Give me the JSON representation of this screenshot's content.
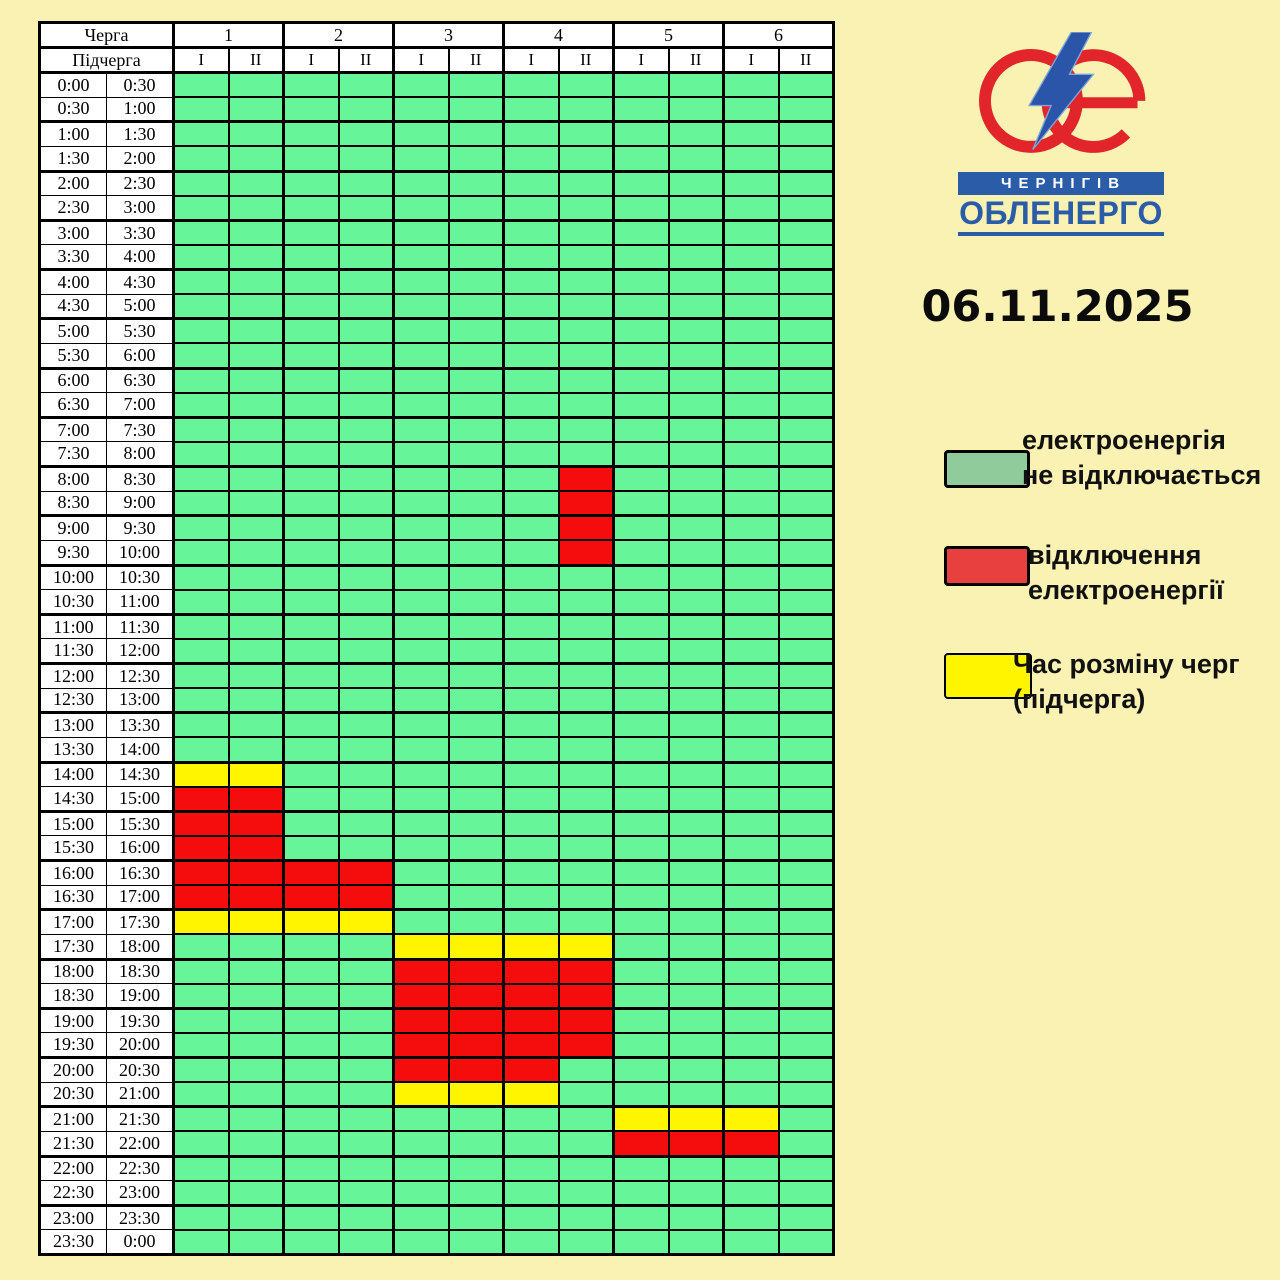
{
  "date": "06.11.2025",
  "logo": {
    "city": "ЧЕРНІГІВ",
    "company": "ОБЛЕНЕРГО",
    "blue": "#2B5CA8",
    "white": "#FFFFFF",
    "ring_color": "#E2252B",
    "bolt_color": "#2B55A8",
    "bolt_edge": "#7EA6D8"
  },
  "legend": [
    {
      "name": "green",
      "color": "#8FCB9B",
      "label": "електроенергія\nне відключається"
    },
    {
      "name": "red",
      "color": "#E8403F",
      "label": "відключення\nелектроенергії"
    },
    {
      "name": "yellow",
      "color": "#FFF500",
      "label": "Час розміну черг\n(підчерга)"
    }
  ],
  "table": {
    "corner_row1": "Черга",
    "corner_row2": "Підчерга",
    "queue_numbers": [
      "1",
      "2",
      "3",
      "4",
      "5",
      "6"
    ],
    "colors": {
      "available": "#66F599",
      "outage": "#F50C0C",
      "transition": "#FFF500"
    },
    "time_rows": [
      [
        "0:00",
        "0:30"
      ],
      [
        "0:30",
        "1:00"
      ],
      [
        "1:00",
        "1:30"
      ],
      [
        "1:30",
        "2:00"
      ],
      [
        "2:00",
        "2:30"
      ],
      [
        "2:30",
        "3:00"
      ],
      [
        "3:00",
        "3:30"
      ],
      [
        "3:30",
        "4:00"
      ],
      [
        "4:00",
        "4:30"
      ],
      [
        "4:30",
        "5:00"
      ],
      [
        "5:00",
        "5:30"
      ],
      [
        "5:30",
        "6:00"
      ],
      [
        "6:00",
        "6:30"
      ],
      [
        "6:30",
        "7:00"
      ],
      [
        "7:00",
        "7:30"
      ],
      [
        "7:30",
        "8:00"
      ],
      [
        "8:00",
        "8:30"
      ],
      [
        "8:30",
        "9:00"
      ],
      [
        "9:00",
        "9:30"
      ],
      [
        "9:30",
        "10:00"
      ],
      [
        "10:00",
        "10:30"
      ],
      [
        "10:30",
        "11:00"
      ],
      [
        "11:00",
        "11:30"
      ],
      [
        "11:30",
        "12:00"
      ],
      [
        "12:00",
        "12:30"
      ],
      [
        "12:30",
        "13:00"
      ],
      [
        "13:00",
        "13:30"
      ],
      [
        "13:30",
        "14:00"
      ],
      [
        "14:00",
        "14:30"
      ],
      [
        "14:30",
        "15:00"
      ],
      [
        "15:00",
        "15:30"
      ],
      [
        "15:30",
        "16:00"
      ],
      [
        "16:00",
        "16:30"
      ],
      [
        "16:30",
        "17:00"
      ],
      [
        "17:00",
        "17:30"
      ],
      [
        "17:30",
        "18:00"
      ],
      [
        "18:00",
        "18:30"
      ],
      [
        "18:30",
        "19:00"
      ],
      [
        "19:00",
        "19:30"
      ],
      [
        "19:30",
        "20:00"
      ],
      [
        "20:00",
        "20:30"
      ],
      [
        "20:30",
        "21:00"
      ],
      [
        "21:00",
        "21:30"
      ],
      [
        "21:30",
        "22:00"
      ],
      [
        "22:00",
        "22:30"
      ],
      [
        "22:30",
        "23:00"
      ],
      [
        "23:00",
        "23:30"
      ],
      [
        "23:30",
        "0:00"
      ]
    ],
    "columns": [
      {
        "queue": "1",
        "subqueue": "I",
        "red": [
          "14:30-17:00"
        ],
        "yellow": [
          "14:00-14:30",
          "17:00-17:30"
        ]
      },
      {
        "queue": "1",
        "subqueue": "II",
        "red": [
          "14:30-17:00"
        ],
        "yellow": [
          "14:00-14:30",
          "17:00-17:30"
        ]
      },
      {
        "queue": "2",
        "subqueue": "I",
        "red": [
          "16:00-17:00"
        ],
        "yellow": [
          "17:00-17:30"
        ]
      },
      {
        "queue": "2",
        "subqueue": "II",
        "red": [
          "16:00-17:00"
        ],
        "yellow": [
          "17:00-17:30"
        ]
      },
      {
        "queue": "3",
        "subqueue": "I",
        "red": [
          "18:00-20:30"
        ],
        "yellow": [
          "17:30-18:00",
          "20:30-21:00"
        ]
      },
      {
        "queue": "3",
        "subqueue": "II",
        "red": [
          "18:00-20:30"
        ],
        "yellow": [
          "17:30-18:00",
          "20:30-21:00"
        ]
      },
      {
        "queue": "4",
        "subqueue": "I",
        "red": [
          "18:00-20:30"
        ],
        "yellow": [
          "17:30-18:00",
          "20:30-21:00"
        ]
      },
      {
        "queue": "4",
        "subqueue": "II",
        "red": [
          "8:00-10:00",
          "18:00-20:00"
        ],
        "yellow": [
          "17:30-18:00"
        ]
      },
      {
        "queue": "5",
        "subqueue": "I",
        "red": [
          "21:30-22:00"
        ],
        "yellow": [
          "21:00-21:30"
        ]
      },
      {
        "queue": "5",
        "subqueue": "II",
        "red": [
          "21:30-22:00"
        ],
        "yellow": [
          "21:00-21:30"
        ]
      },
      {
        "queue": "6",
        "subqueue": "I",
        "red": [
          "21:30-22:00"
        ],
        "yellow": [
          "21:00-21:30"
        ]
      },
      {
        "queue": "6",
        "subqueue": "II",
        "red": [],
        "yellow": []
      }
    ]
  },
  "chart_data": {
    "type": "table",
    "title": "06.11.2025",
    "row_axis": "time, 30-minute slots from 0:00 to 0:00 (48 rows)",
    "column_axis": "Черга 1-6, Підчерга I/II",
    "columns": [
      "1-I",
      "1-II",
      "2-I",
      "2-II",
      "3-I",
      "3-II",
      "4-I",
      "4-II",
      "5-I",
      "5-II",
      "6-I",
      "6-II"
    ],
    "outage_intervals": {
      "1-I": [
        "14:30-17:00"
      ],
      "1-II": [
        "14:30-17:00"
      ],
      "2-I": [
        "16:00-17:00"
      ],
      "2-II": [
        "16:00-17:00"
      ],
      "3-I": [
        "18:00-20:30"
      ],
      "3-II": [
        "18:00-20:30"
      ],
      "4-I": [
        "18:00-20:30"
      ],
      "4-II": [
        "8:00-10:00",
        "18:00-20:00"
      ],
      "5-I": [
        "21:30-22:00"
      ],
      "5-II": [
        "21:30-22:00"
      ],
      "6-I": [
        "21:30-22:00"
      ],
      "6-II": []
    },
    "transition_intervals": {
      "1-I": [
        "14:00-14:30",
        "17:00-17:30"
      ],
      "1-II": [
        "14:00-14:30",
        "17:00-17:30"
      ],
      "2-I": [
        "17:00-17:30"
      ],
      "2-II": [
        "17:00-17:30"
      ],
      "3-I": [
        "17:30-18:00",
        "20:30-21:00"
      ],
      "3-II": [
        "17:30-18:00",
        "20:30-21:00"
      ],
      "4-I": [
        "17:30-18:00",
        "20:30-21:00"
      ],
      "4-II": [
        "17:30-18:00"
      ],
      "5-I": [
        "21:00-21:30"
      ],
      "5-II": [
        "21:00-21:30"
      ],
      "6-I": [
        "21:00-21:30"
      ],
      "6-II": []
    },
    "cell_states": {
      "green": "електроенергія не відключається",
      "red": "відключення електроенергії",
      "yellow": "Час розміну черг (підчерга)"
    }
  }
}
